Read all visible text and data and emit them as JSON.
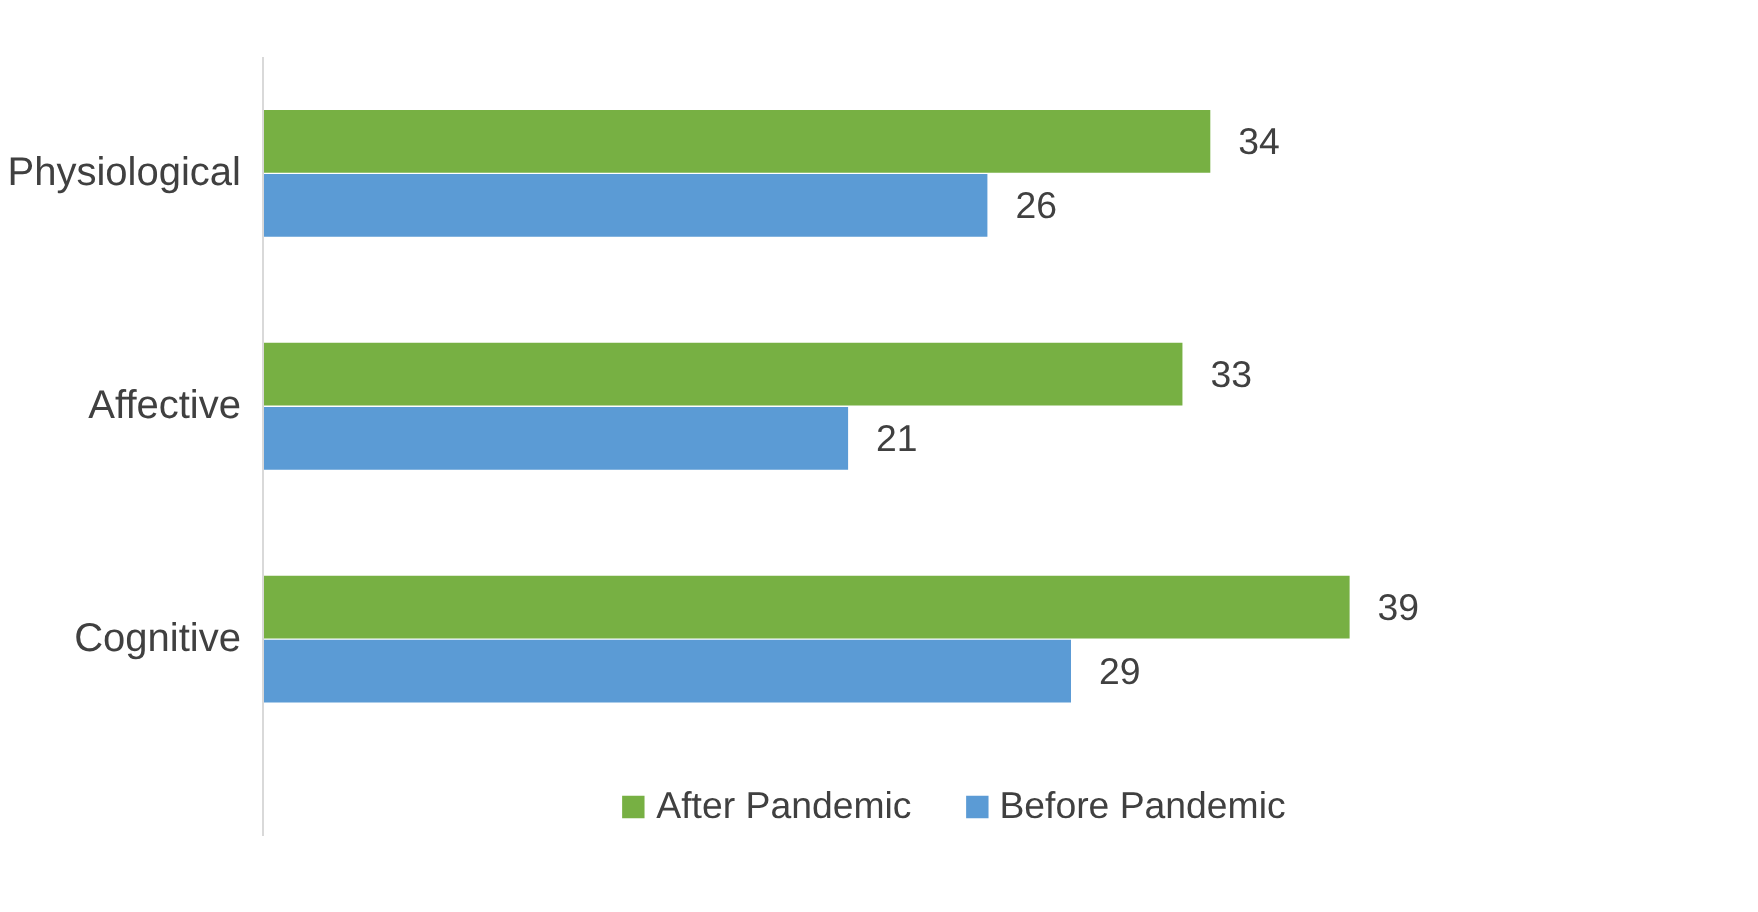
{
  "chart_data": {
    "type": "bar",
    "orientation": "horizontal",
    "categories": [
      "Physiological",
      "Affective",
      "Cognitive"
    ],
    "series": [
      {
        "name": "After Pandemic",
        "color": "#77b043",
        "values": [
          34,
          33,
          39
        ]
      },
      {
        "name": "Before Pandemic",
        "color": "#5b9bd5",
        "values": [
          26,
          21,
          29
        ]
      }
    ],
    "data_labels": true,
    "legend": "bottom",
    "grid": false
  }
}
